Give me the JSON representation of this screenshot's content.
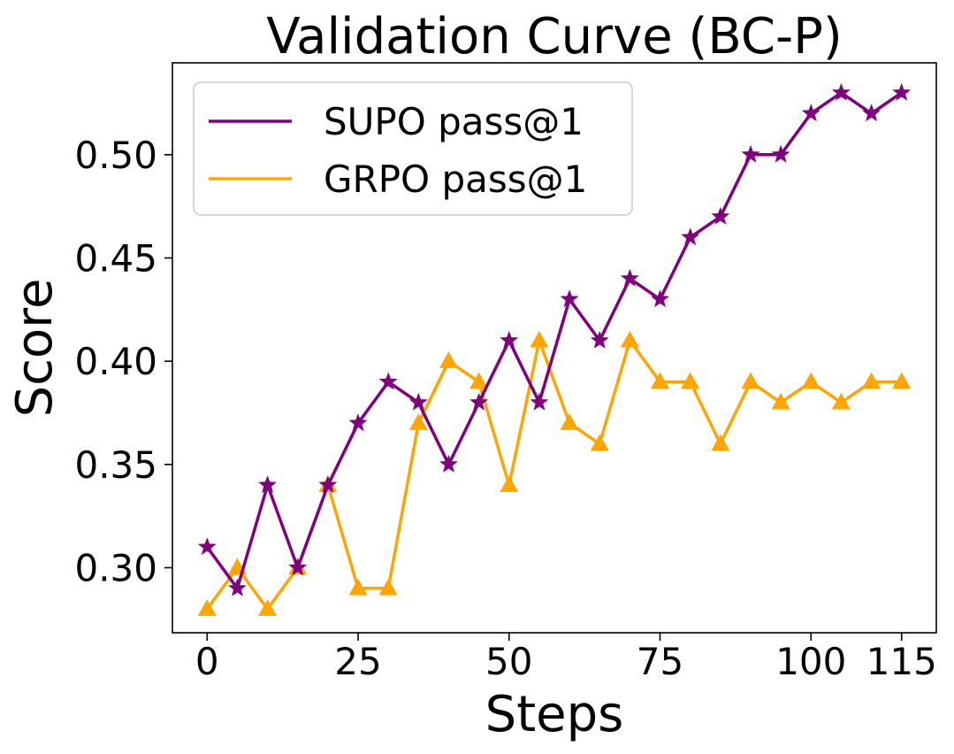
{
  "chart_data": {
    "type": "line",
    "title": "Validation Curve (BC-P)",
    "xlabel": "Steps",
    "ylabel": "Score",
    "xlim": [
      -5.75,
      120.75
    ],
    "ylim": [
      0.2685,
      0.5445
    ],
    "xticks": [
      0,
      25,
      50,
      75,
      100,
      115
    ],
    "xtick_labels": [
      "0",
      "25",
      "50",
      "75",
      "100",
      "115"
    ],
    "yticks": [
      0.3,
      0.35,
      0.4,
      0.45,
      0.5
    ],
    "ytick_labels": [
      "0.30",
      "0.35",
      "0.40",
      "0.45",
      "0.50"
    ],
    "grid": false,
    "legend_position": "top-left",
    "x": [
      0,
      5,
      10,
      15,
      20,
      25,
      30,
      35,
      40,
      45,
      50,
      55,
      60,
      65,
      70,
      75,
      80,
      85,
      90,
      95,
      100,
      105,
      110,
      115
    ],
    "series": [
      {
        "name": "SUPO pass@1",
        "color": "#800080",
        "marker": "star",
        "values": [
          0.31,
          0.29,
          0.34,
          0.3,
          0.34,
          0.37,
          0.39,
          0.38,
          0.35,
          0.38,
          0.41,
          0.38,
          0.43,
          0.41,
          0.44,
          0.43,
          0.46,
          0.47,
          0.5,
          0.5,
          0.52,
          0.53,
          0.52,
          0.53
        ]
      },
      {
        "name": "GRPO pass@1",
        "color": "#FFA500",
        "marker": "triangle",
        "values": [
          0.28,
          0.3,
          0.28,
          0.3,
          0.34,
          0.29,
          0.29,
          0.37,
          0.4,
          0.39,
          0.34,
          0.41,
          0.37,
          0.36,
          0.41,
          0.39,
          0.39,
          0.36,
          0.39,
          0.38,
          0.39,
          0.38,
          0.39,
          0.39
        ]
      }
    ]
  }
}
